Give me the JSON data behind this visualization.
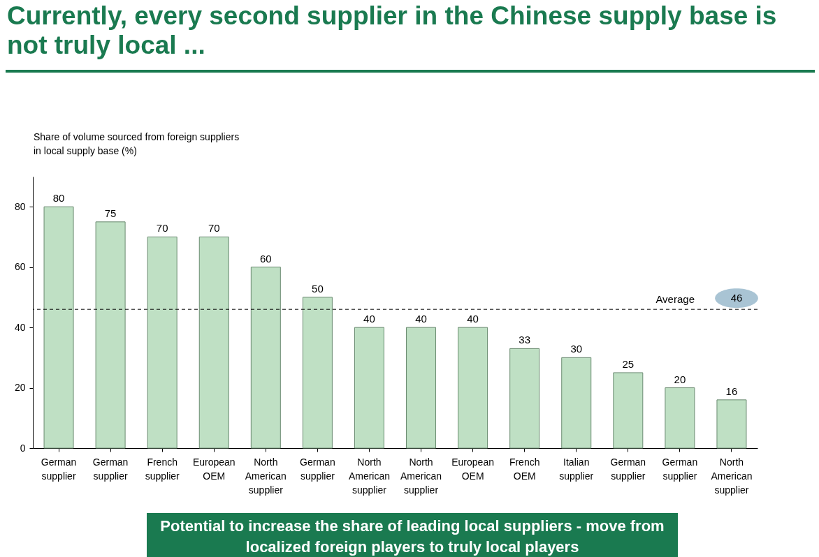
{
  "chart_data": {
    "type": "bar",
    "title": "Currently, every second supplier in the Chinese supply base is not truly local ...",
    "ylabel": "Share of volume sourced from foreign suppliers in local supply base (%)",
    "categories": [
      "German supplier",
      "German supplier",
      "French supplier",
      "European OEM",
      "North American supplier",
      "German supplier",
      "North American supplier",
      "North American supplier",
      "European OEM",
      "French OEM",
      "Italian supplier",
      "German supplier",
      "German supplier",
      "North American supplier"
    ],
    "values": [
      80,
      75,
      70,
      70,
      60,
      50,
      40,
      40,
      40,
      33,
      30,
      25,
      20,
      16
    ],
    "color": "#bfe0c4",
    "ylim": [
      0,
      90
    ],
    "yticks": [
      0,
      20,
      40,
      60,
      80
    ],
    "data_labels": true,
    "ref_lines": [
      {
        "axis": "y",
        "value": 46,
        "label": "Average",
        "line_style": "dashed",
        "color": "#000000"
      }
    ],
    "annotations": [
      {
        "text": "46",
        "y": 46
      },
      "Potential to increase the share of leading local suppliers - move from localized foreign players to truly local players"
    ]
  }
}
